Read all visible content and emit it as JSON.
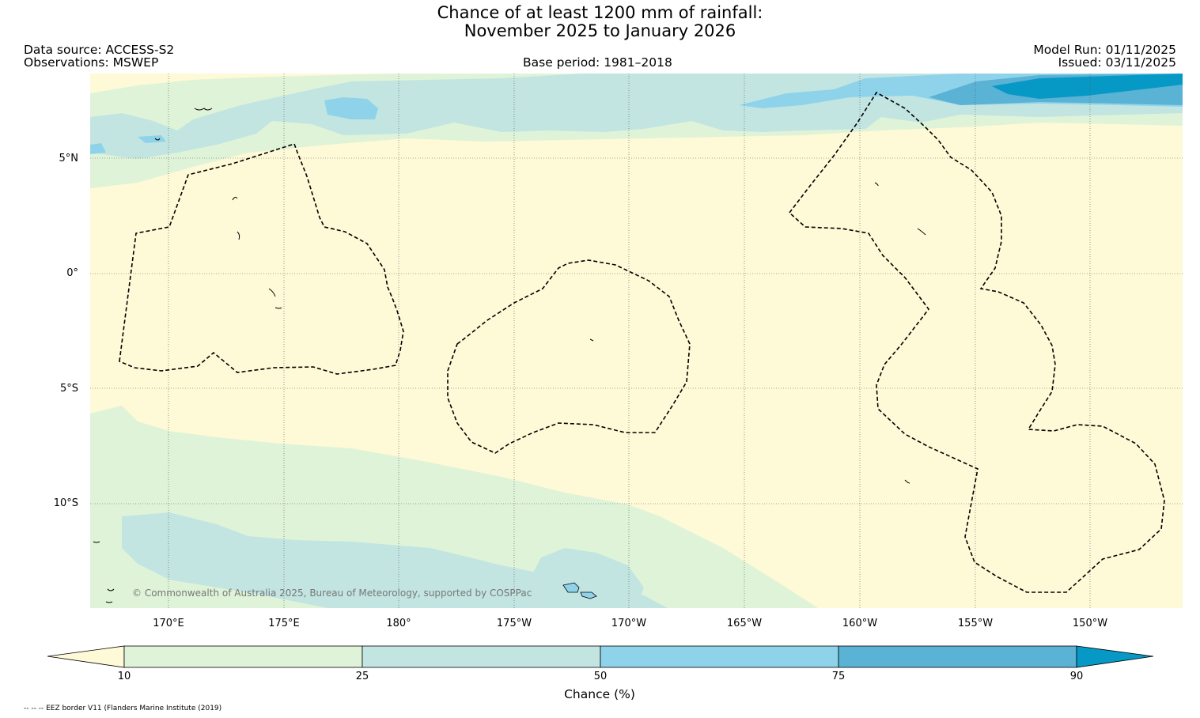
{
  "header": {
    "title_line1": "Chance of at least 1200 mm of rainfall:",
    "title_line2": "November 2025 to January 2026",
    "data_source": "Data source: ACCESS-S2",
    "observations": "Observations: MSWEP",
    "base_period": "Base period: 1981–2018",
    "model_run": "Model Run: 01/11/2025",
    "issued": "Issued: 03/11/2025"
  },
  "map": {
    "lat_labels": [
      "5°N",
      "0°",
      "5°S",
      "10°S"
    ],
    "lon_labels": [
      "170°E",
      "175°E",
      "180°",
      "175°W",
      "170°W",
      "165°W",
      "160°W",
      "155°W",
      "150°W"
    ],
    "copyright": "© Commonwealth of Australia 2025, Bureau of Meteorology, supported by COSPPac",
    "colors": {
      "below_10": "#fef9d6",
      "c10_25": "#dff3d8",
      "c25_50": "#c2e5e2",
      "c50_75": "#8fd3ea",
      "c75_90": "#5ab2d5",
      "above_90": "#0699c6"
    }
  },
  "colorbar": {
    "ticks": [
      "10",
      "25",
      "50",
      "75",
      "90"
    ],
    "label": "Chance (%)"
  },
  "footer": {
    "eez_note": "-- -- -- EEZ border V11 (Flanders Marine Institute (2019)"
  }
}
